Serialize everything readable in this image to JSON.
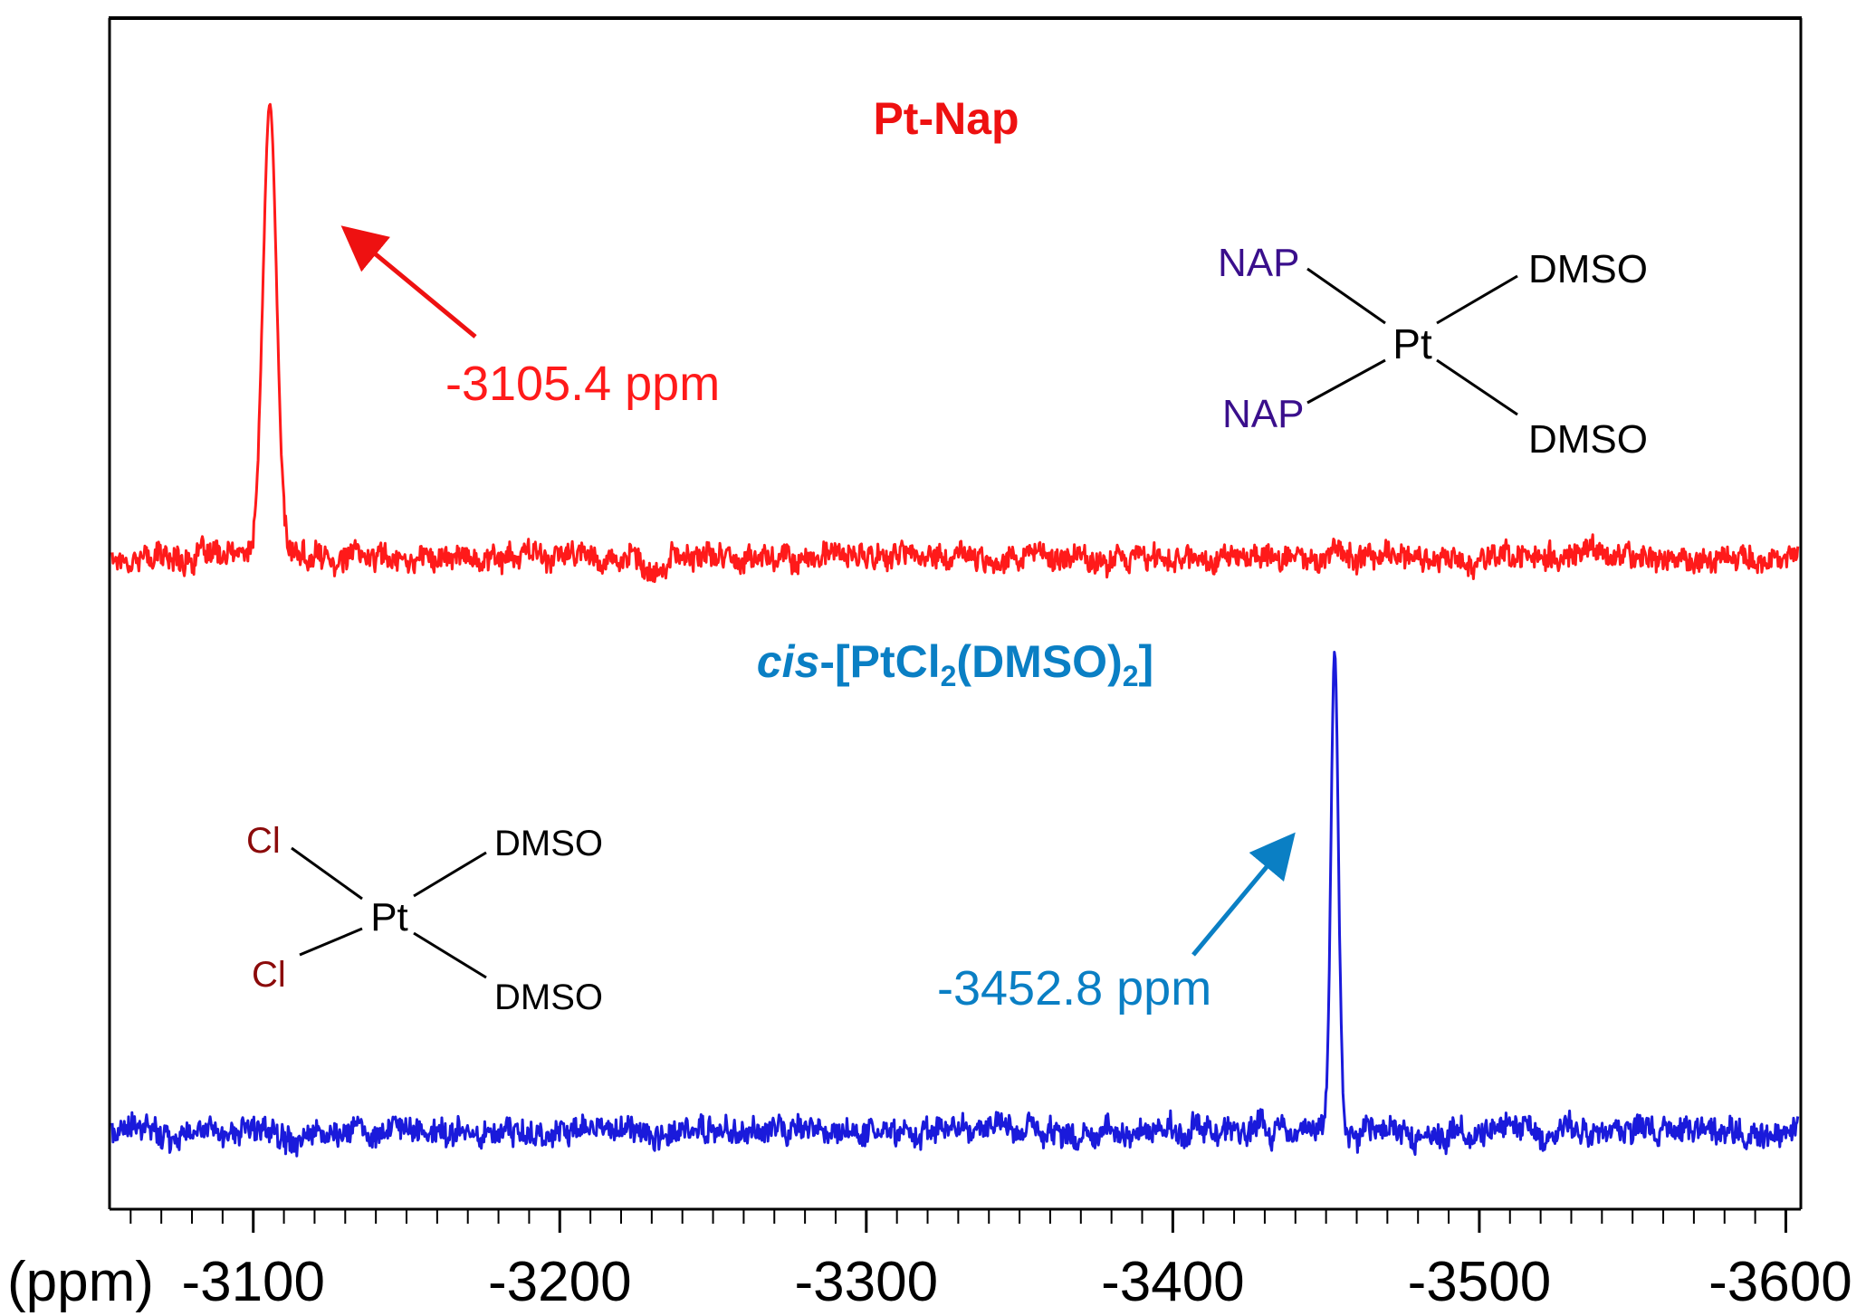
{
  "colors": {
    "top_series": "#ff1a1a",
    "top_title": "#ee1111",
    "bottom_series": "#1a1adb",
    "bottom_title": "#0a7fc4",
    "nap_label": "#3a0f8c",
    "cl_label": "#8b0a0a",
    "axis": "#000000"
  },
  "chart_data": {
    "type": "line",
    "xlabel": "(ppm)",
    "xlim": [
      -3054,
      -3604
    ],
    "x_reversed": true,
    "ylim": [
      -0.15,
      1.1
    ],
    "grid": false,
    "xticks": [
      -3100,
      -3200,
      -3300,
      -3400,
      -3500,
      -3600
    ],
    "xtick_labels": [
      "-3100",
      "-3200",
      "-3300",
      "-3400",
      "-3500",
      "-3600"
    ],
    "series": [
      {
        "name": "Pt-Nap",
        "baseline": 0.0,
        "noise": 0.045,
        "peak_position": -3105.4,
        "peak_intensity": 1.0,
        "peak_width": 2.2,
        "points": [
          [
            -3054,
            0.0
          ],
          [
            -3095,
            0.02
          ],
          [
            -3100,
            0.12
          ],
          [
            -3102,
            0.55
          ],
          [
            -3104,
            0.95
          ],
          [
            -3105.4,
            1.0
          ],
          [
            -3106.5,
            0.9
          ],
          [
            -3108,
            0.45
          ],
          [
            -3110,
            0.08
          ],
          [
            -3115,
            0.02
          ],
          [
            -3230,
            -0.08
          ],
          [
            -3604,
            0.0
          ]
        ]
      },
      {
        "name": "cis-[PtCl2(DMSO)2]",
        "baseline": 0.0,
        "noise": 0.045,
        "peak_position": -3452.8,
        "peak_intensity": 1.0,
        "peak_width": 1.2,
        "points": [
          [
            -3054,
            0.0
          ],
          [
            -3448,
            0.04
          ],
          [
            -3451,
            0.35
          ],
          [
            -3452.8,
            1.0
          ],
          [
            -3454,
            0.35
          ],
          [
            -3457,
            0.03
          ],
          [
            -3604,
            0.0
          ]
        ]
      }
    ],
    "annotations": [
      {
        "series": "Pt-Nap",
        "title": "Pt-Nap",
        "peak_label": "-3105.4 ppm"
      },
      {
        "series": "cis-[PtCl2(DMSO)2]",
        "title_italic": "cis",
        "title_main": "-[PtCl",
        "title_sub1": "2",
        "title_mid": "(DMSO)",
        "title_sub2": "2",
        "title_end": "]",
        "peak_label": "-3452.8 ppm"
      }
    ]
  },
  "structures": {
    "top": {
      "center": "Pt",
      "ligand_top_left": "NAP",
      "ligand_bottom_left": "NAP",
      "ligand_top_right": "DMSO",
      "ligand_bottom_right": "DMSO"
    },
    "bottom": {
      "center": "Pt",
      "ligand_top_left": "Cl",
      "ligand_bottom_left": "Cl",
      "ligand_top_right": "DMSO",
      "ligand_bottom_right": "DMSO"
    }
  }
}
